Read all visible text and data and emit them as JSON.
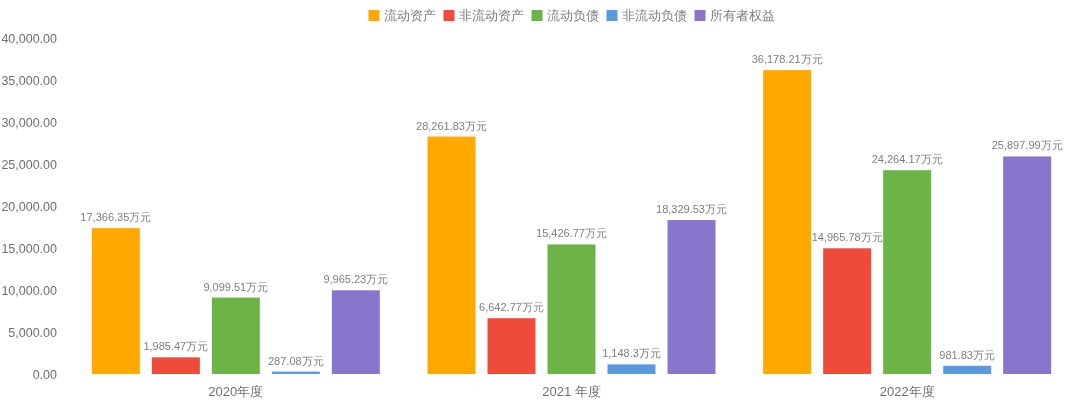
{
  "chart_data": {
    "type": "bar",
    "categories": [
      "2020年度",
      "2021 年度",
      "2022年度"
    ],
    "series": [
      {
        "name": "流动资产",
        "color": "#ffa800",
        "values": [
          17366.35,
          28261.83,
          36178.21
        ],
        "value_labels": [
          "17,366.35万元",
          "28,261.83万元",
          "36,178.21万元"
        ]
      },
      {
        "name": "非流动资产",
        "color": "#ee4b3b",
        "values": [
          1985.47,
          6642.77,
          14965.78
        ],
        "value_labels": [
          "1,985.47万元",
          "6,642.77万元",
          "14,965.78万元"
        ]
      },
      {
        "name": "流动负债",
        "color": "#6db446",
        "values": [
          9099.51,
          15426.77,
          24264.17
        ],
        "value_labels": [
          "9,099.51万元",
          "15,426.77万元",
          "24,264.17万元"
        ]
      },
      {
        "name": "非流动负债",
        "color": "#5a9be0",
        "values": [
          287.08,
          1148.3,
          981.83
        ],
        "value_labels": [
          "287.08万元",
          "1,148.3万元",
          "981.83万元"
        ]
      },
      {
        "name": "所有者权益",
        "color": "#8a75cc",
        "values": [
          9965.23,
          18329.53,
          25897.99
        ],
        "value_labels": [
          "9,965.23万元",
          "18,329.53万元",
          "25,897.99万元"
        ]
      }
    ],
    "ylim": [
      0,
      40000
    ],
    "yticks": [
      {
        "value": 0,
        "label": "0.00"
      },
      {
        "value": 5000,
        "label": "5,000.00"
      },
      {
        "value": 10000,
        "label": "10,000.00"
      },
      {
        "value": 15000,
        "label": "15,000.00"
      },
      {
        "value": 20000,
        "label": "20,000.00"
      },
      {
        "value": 25000,
        "label": "25,000.00"
      },
      {
        "value": 30000,
        "label": "30,000.00"
      },
      {
        "value": 35000,
        "label": "35,000.00"
      },
      {
        "value": 40000,
        "label": "40,000.00"
      }
    ],
    "legend": "top"
  }
}
